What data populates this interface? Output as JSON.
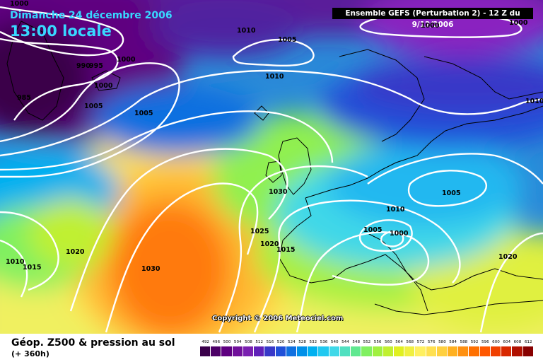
{
  "header": {
    "date": "Dimanche 24 décembre 2006",
    "time": "13:00 locale",
    "run_info": "Ensemble GEFS (Perturbation 2)  - 12 Z du 9/12/2006"
  },
  "footer": {
    "title": "Géop. Z500 & pression au sol",
    "subtitle": "(+ 360h)",
    "copyright": "Copyright © 2006 Meteociel.com"
  },
  "isobar_labels": [
    "1000",
    "1000",
    "990",
    "995",
    "1000",
    "1000",
    "985",
    "1010",
    "1005",
    "1005",
    "1005",
    "1010",
    "1030",
    "1025",
    "1020",
    "1015",
    "1020",
    "1010",
    "1015",
    "1030",
    "1010",
    "1005",
    "1000",
    "1005",
    "1020",
    "1010",
    "1000"
  ],
  "legend": {
    "values": [
      "492",
      "496",
      "500",
      "504",
      "508",
      "512",
      "516",
      "520",
      "524",
      "528",
      "532",
      "536",
      "540",
      "544",
      "548",
      "552",
      "556",
      "560",
      "564",
      "568",
      "572",
      "576",
      "580",
      "584",
      "588",
      "592",
      "596",
      "600",
      "604",
      "608",
      "612"
    ],
    "colors": [
      "#3a004a",
      "#4c0066",
      "#5e0080",
      "#70109a",
      "#7a20b0",
      "#6020b8",
      "#3838c8",
      "#2050d8",
      "#1070e0",
      "#0090e8",
      "#00b0f0",
      "#20c8f0",
      "#40d8e8",
      "#50e0c0",
      "#60e890",
      "#80f060",
      "#a0f040",
      "#c0f030",
      "#e0f020",
      "#f0f040",
      "#fff060",
      "#ffe050",
      "#ffd040",
      "#ffb020",
      "#ff9010",
      "#ff7000",
      "#ff5800",
      "#f04000",
      "#d82800",
      "#b01000",
      "#880000"
    ]
  }
}
